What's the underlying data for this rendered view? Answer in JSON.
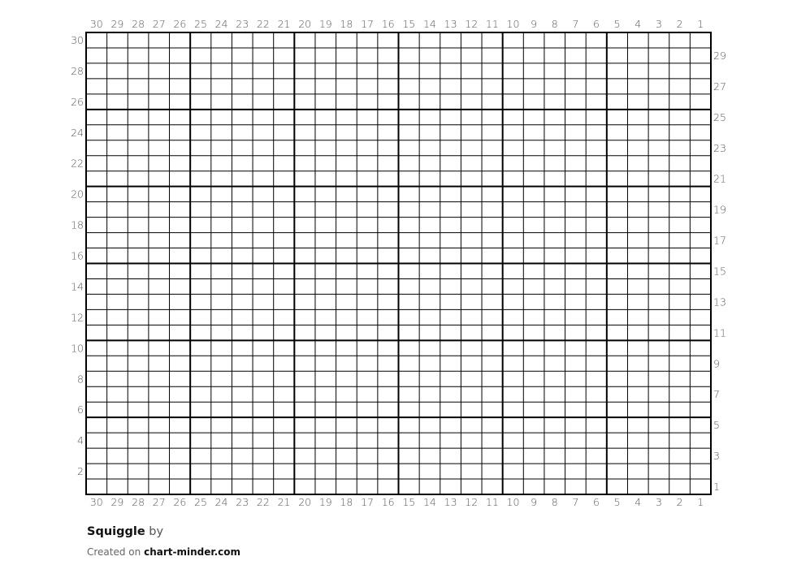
{
  "chart_data": {
    "type": "table",
    "title": "Squiggle",
    "columns": 30,
    "rows": 30,
    "major_grid_every": 5,
    "column_labels": [
      30,
      29,
      28,
      27,
      26,
      25,
      24,
      23,
      22,
      21,
      20,
      19,
      18,
      17,
      16,
      15,
      14,
      13,
      12,
      11,
      10,
      9,
      8,
      7,
      6,
      5,
      4,
      3,
      2,
      1
    ],
    "row_labels_left": [
      30,
      28,
      26,
      24,
      22,
      20,
      18,
      16,
      14,
      12,
      10,
      8,
      6,
      4,
      2
    ],
    "row_labels_right": [
      29,
      27,
      25,
      23,
      21,
      19,
      17,
      15,
      13,
      11,
      9,
      7,
      5,
      3,
      1
    ],
    "cells_filled": [],
    "grid_color": "#000000",
    "cell_color": "#ffffff"
  },
  "footer": {
    "pattern_name": "Squiggle",
    "by": "by",
    "created_on": "Created on",
    "site": "chart-minder.com"
  }
}
